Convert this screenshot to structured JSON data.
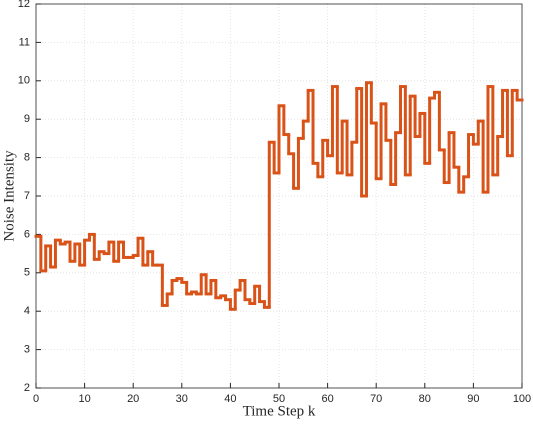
{
  "chart_data": {
    "type": "step",
    "xlabel": "Time Step k",
    "ylabel": "Noise Intensity",
    "x": [
      0,
      1,
      2,
      3,
      4,
      5,
      6,
      7,
      8,
      9,
      10,
      11,
      12,
      13,
      14,
      15,
      16,
      17,
      18,
      19,
      20,
      21,
      22,
      23,
      24,
      25,
      26,
      27,
      28,
      29,
      30,
      31,
      32,
      33,
      34,
      35,
      36,
      37,
      38,
      39,
      40,
      41,
      42,
      43,
      44,
      45,
      46,
      47,
      48,
      49,
      50,
      51,
      52,
      53,
      54,
      55,
      56,
      57,
      58,
      59,
      60,
      61,
      62,
      63,
      64,
      65,
      66,
      67,
      68,
      69,
      70,
      71,
      72,
      73,
      74,
      75,
      76,
      77,
      78,
      79,
      80,
      81,
      82,
      83,
      84,
      85,
      86,
      87,
      88,
      89,
      90,
      91,
      92,
      93,
      94,
      95,
      96,
      97,
      98,
      99
    ],
    "series": [
      {
        "name": "Noise Intensity",
        "color": "#d95319",
        "values": [
          5.95,
          5.05,
          5.7,
          5.15,
          5.85,
          5.75,
          5.8,
          5.3,
          5.75,
          5.2,
          5.85,
          6.0,
          5.35,
          5.55,
          5.5,
          5.8,
          5.3,
          5.8,
          5.4,
          5.4,
          5.45,
          5.9,
          5.2,
          5.55,
          5.2,
          5.2,
          4.15,
          4.45,
          4.8,
          4.85,
          4.75,
          4.45,
          4.5,
          4.45,
          4.95,
          4.45,
          4.8,
          4.35,
          4.4,
          4.3,
          4.05,
          4.55,
          4.8,
          4.3,
          4.2,
          4.65,
          4.25,
          4.1,
          8.4,
          7.6,
          9.35,
          8.6,
          8.1,
          7.2,
          8.5,
          8.95,
          9.75,
          7.85,
          7.5,
          8.45,
          8.05,
          9.85,
          7.6,
          8.95,
          7.55,
          8.4,
          9.8,
          7.0,
          9.95,
          8.9,
          7.45,
          9.4,
          8.45,
          7.3,
          8.65,
          9.85,
          7.55,
          9.6,
          8.55,
          9.15,
          7.85,
          9.55,
          9.7,
          8.2,
          7.35,
          8.65,
          7.75,
          7.1,
          7.5,
          8.6,
          8.35,
          8.95,
          7.1,
          9.85,
          7.55,
          8.55,
          9.75,
          8.05,
          9.75,
          9.5
        ]
      }
    ],
    "xlim": [
      0,
      100
    ],
    "xticks": [
      0,
      10,
      20,
      30,
      40,
      50,
      60,
      70,
      80,
      90,
      100
    ],
    "ylim": [
      2,
      12
    ],
    "yticks": [
      2,
      3,
      4,
      5,
      6,
      7,
      8,
      9,
      10,
      11,
      12
    ],
    "grid": true
  }
}
